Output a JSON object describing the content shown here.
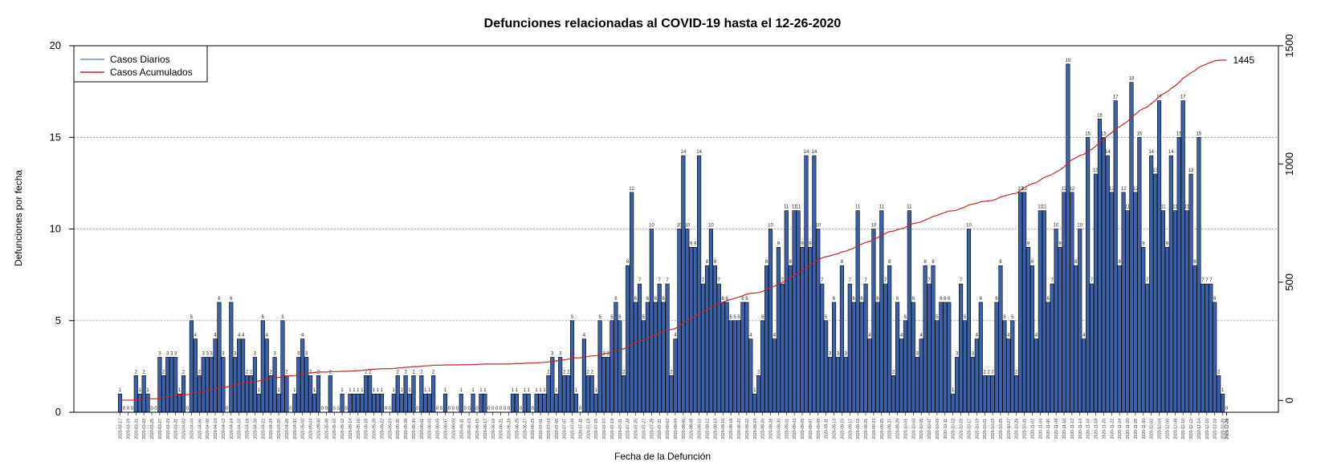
{
  "chart_data": {
    "type": "bar",
    "title": "Defunciones relacionadas al COVID-19 hasta el 12-26-2020",
    "xlabel": "Fecha de la Defunción",
    "ylabel": "Defunciones por fecha",
    "ylim": [
      0,
      20
    ],
    "y_ticks": [
      0,
      5,
      10,
      15,
      20
    ],
    "y2lim": [
      -50,
      1500
    ],
    "y2_ticks": [
      0,
      500,
      1000,
      1500
    ],
    "grid": "horizontal dotted",
    "legend_position": "top-left",
    "start_date": "2020-03-17",
    "end_date": "2020-12-26",
    "end_annotation": "1445",
    "series": [
      {
        "name": "Casos Diarios",
        "type": "bar",
        "color": "#3b62a8"
      },
      {
        "name": "Casos Acumulados",
        "type": "line",
        "color": "#cc2222"
      }
    ],
    "daily_values": [
      1,
      0,
      0,
      0,
      2,
      1,
      2,
      1,
      0,
      0,
      3,
      2,
      3,
      3,
      3,
      1,
      2,
      0,
      5,
      4,
      2,
      3,
      3,
      3,
      4,
      6,
      3,
      0,
      6,
      3,
      4,
      4,
      2,
      2,
      3,
      1,
      5,
      4,
      2,
      3,
      1,
      5,
      2,
      0,
      1,
      3,
      4,
      3,
      2,
      1,
      2,
      0,
      0,
      2,
      0,
      0,
      1,
      0,
      1,
      1,
      1,
      1,
      2,
      2,
      1,
      1,
      1,
      0,
      0,
      1,
      2,
      1,
      2,
      1,
      2,
      0,
      2,
      1,
      1,
      2,
      0,
      0,
      1,
      0,
      0,
      0,
      1,
      0,
      0,
      1,
      0,
      1,
      1,
      0,
      0,
      0,
      0,
      0,
      0,
      1,
      1,
      0,
      1,
      1,
      0,
      1,
      1,
      1,
      2,
      3,
      1,
      3,
      2,
      2,
      5,
      1,
      0,
      4,
      2,
      2,
      1,
      5,
      3,
      3,
      5,
      6,
      5,
      2,
      8,
      12,
      6,
      7,
      5,
      6,
      10,
      6,
      7,
      6,
      7,
      2,
      4,
      10,
      14,
      10,
      9,
      9,
      14,
      7,
      8,
      10,
      8,
      7,
      6,
      6,
      5,
      5,
      5,
      6,
      6,
      4,
      1,
      2,
      5,
      8,
      10,
      4,
      9,
      7,
      11,
      8,
      11,
      11,
      9,
      14,
      9,
      14,
      10,
      7,
      5,
      3,
      6,
      3,
      8,
      3,
      7,
      6,
      11,
      6,
      7,
      4,
      10,
      6,
      11,
      7,
      8,
      2,
      6,
      4,
      5,
      11,
      6,
      3,
      4,
      8,
      7,
      8,
      5,
      6,
      6,
      6,
      1,
      3,
      7,
      5,
      10,
      3,
      4,
      6,
      2,
      2,
      2,
      6,
      8,
      5,
      4,
      5,
      2,
      12,
      12,
      9,
      8,
      4,
      11,
      11,
      6,
      7,
      10,
      9,
      12,
      19,
      12,
      8,
      10,
      4,
      15,
      7,
      13,
      16,
      15,
      14,
      12,
      17,
      8,
      12,
      11,
      18,
      12,
      15,
      9,
      7,
      14,
      13,
      17,
      11,
      9,
      14,
      11,
      15,
      17,
      11,
      13,
      8,
      15,
      7,
      7,
      7,
      6,
      2,
      1,
      0
    ],
    "date_labels": [
      "2020-03-17",
      "2020-03-19",
      "2020-03-21",
      "2020-03-23",
      "2020-03-25",
      "2020-03-27",
      "2020-03-29",
      "2020-03-31",
      "2020-04-02",
      "2020-04-04",
      "2020-04-06",
      "2020-04-08",
      "2020-04-10",
      "2020-04-12",
      "2020-04-14",
      "2020-04-16",
      "2020-04-18",
      "2020-04-20",
      "2020-04-22",
      "2020-04-24",
      "2020-04-26",
      "2020-04-28",
      "2020-04-30",
      "2020-05-02",
      "2020-05-04",
      "2020-05-06",
      "2020-05-08",
      "2020-05-10",
      "2020-05-12",
      "2020-05-14",
      "2020-05-16",
      "2020-05-18",
      "2020-05-20",
      "2020-05-22",
      "2020-05-24",
      "2020-05-26",
      "2020-05-28",
      "2020-05-30",
      "2020-06-01",
      "2020-06-03",
      "2020-06-05",
      "2020-06-07",
      "2020-06-09",
      "2020-06-11",
      "2020-06-13",
      "2020-06-15",
      "2020-06-17",
      "2020-06-19",
      "2020-06-21",
      "2020-06-23",
      "2020-06-25",
      "2020-06-27",
      "2020-06-29",
      "2020-07-01",
      "2020-07-03",
      "2020-07-05",
      "2020-07-07",
      "2020-07-09",
      "2020-07-11",
      "2020-07-13",
      "2020-07-15",
      "2020-07-17",
      "2020-07-19",
      "2020-07-21",
      "2020-07-23",
      "2020-07-25",
      "2020-07-27",
      "2020-07-29",
      "2020-07-31",
      "2020-08-02",
      "2020-08-04",
      "2020-08-06",
      "2020-08-08",
      "2020-08-10",
      "2020-08-12",
      "2020-08-14",
      "2020-08-16",
      "2020-08-18",
      "2020-08-20",
      "2020-08-22",
      "2020-08-24",
      "2020-08-26",
      "2020-08-28",
      "2020-08-30",
      "2020-09-01",
      "2020-09-03",
      "2020-09-05",
      "2020-09-07",
      "2020-09-09",
      "2020-09-11",
      "2020-09-13",
      "2020-09-15",
      "2020-09-17",
      "2020-09-19",
      "2020-09-21",
      "2020-09-23",
      "2020-09-25",
      "2020-09-27",
      "2020-09-29",
      "2020-10-01",
      "2020-10-03",
      "2020-10-05",
      "2020-10-07",
      "2020-10-09",
      "2020-10-11",
      "2020-10-13",
      "2020-10-15",
      "2020-10-17",
      "2020-10-19",
      "2020-10-21",
      "2020-10-23",
      "2020-10-25",
      "2020-10-27",
      "2020-10-29",
      "2020-10-31",
      "2020-11-02",
      "2020-11-04",
      "2020-11-06",
      "2020-11-08",
      "2020-11-10",
      "2020-11-12",
      "2020-11-14",
      "2020-11-16",
      "2020-11-18",
      "2020-11-20",
      "2020-11-22",
      "2020-11-24",
      "2020-11-26",
      "2020-11-28",
      "2020-11-30",
      "2020-12-02",
      "2020-12-04",
      "2020-12-06",
      "2020-12-08",
      "2020-12-10",
      "2020-12-12",
      "2020-12-14",
      "2020-12-16",
      "2020-12-18",
      "2020-12-20",
      "2020-12-22",
      "2020-12-24",
      "2020-12-26"
    ]
  },
  "colors": {
    "bar_fill": "#3b62a8",
    "bar_stroke": "#000000",
    "line": "#cc2222",
    "legend_daily": "#6a8fd0",
    "grid": "#888888"
  }
}
